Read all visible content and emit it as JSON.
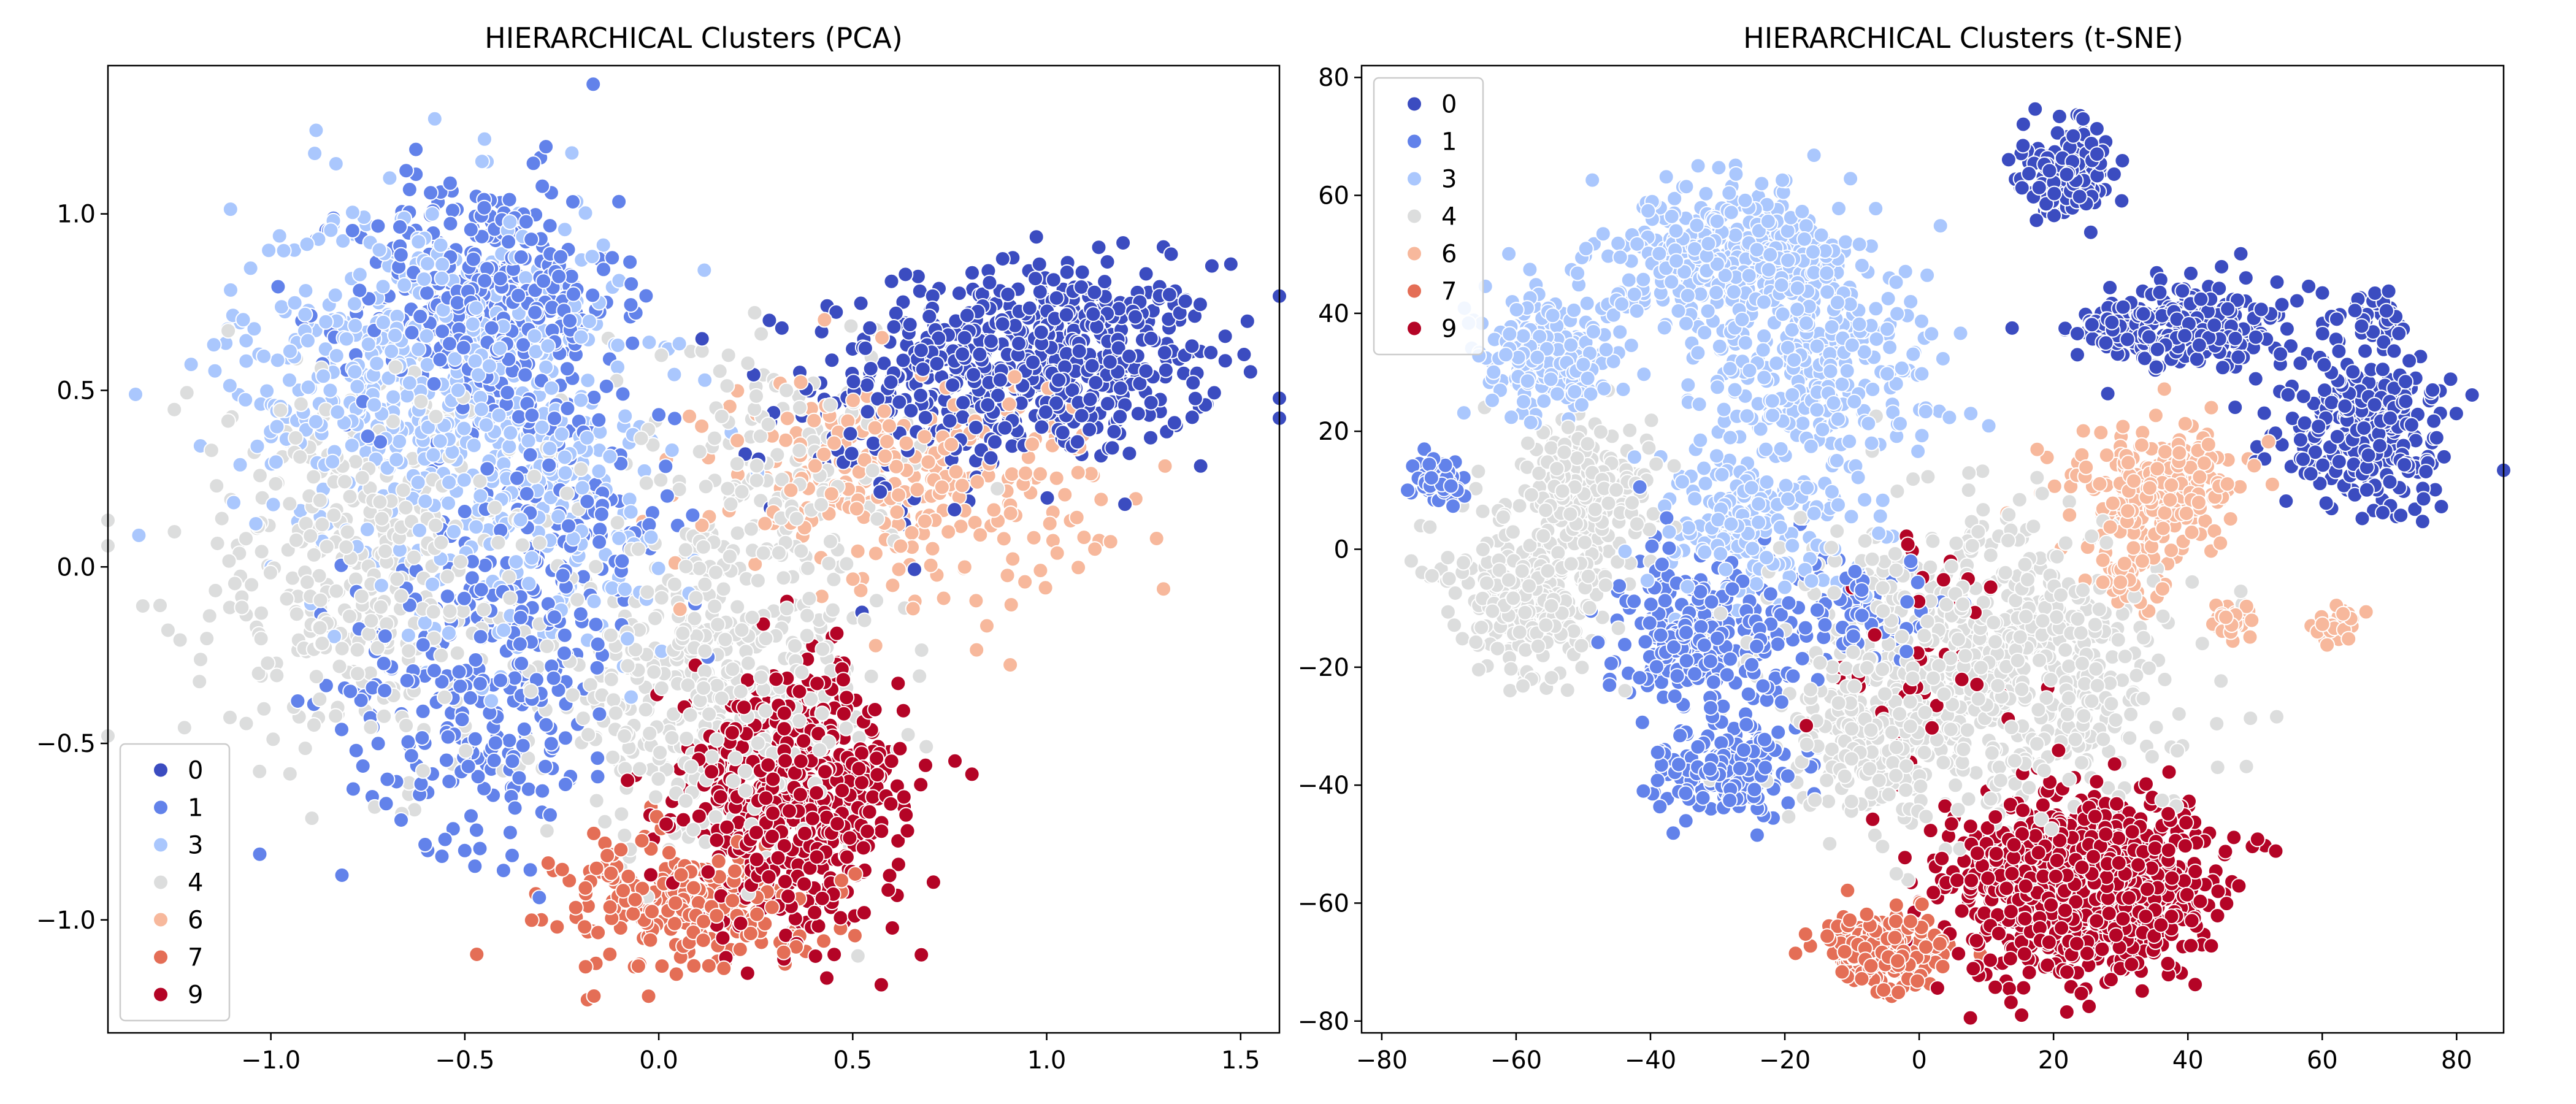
{
  "colors": {
    "0": "#3b4cc0",
    "1": "#6282ea",
    "3": "#aac7fd",
    "4": "#dcdddd",
    "6": "#f7b89c",
    "7": "#e46e56",
    "9": "#b40426"
  },
  "legend_labels": [
    "0",
    "1",
    "3",
    "4",
    "6",
    "7",
    "9"
  ],
  "chart_data": [
    {
      "type": "scatter",
      "title": "HIERARCHICAL Clusters (PCA)",
      "xlabel": "",
      "ylabel": "",
      "xlim": [
        -1.42,
        1.6
      ],
      "ylim": [
        -1.32,
        1.42
      ],
      "xticks": [
        -1.0,
        -0.5,
        0.0,
        0.5,
        1.0,
        1.5
      ],
      "xtick_labels": [
        "−1.0",
        "−0.5",
        "0.0",
        "0.5",
        "1.0",
        "1.5"
      ],
      "yticks": [
        -1.0,
        -0.5,
        0.0,
        0.5,
        1.0
      ],
      "ytick_labels": [
        "−1.0",
        "−0.5",
        "0.0",
        "0.5",
        "1.0"
      ],
      "grid": false,
      "legend_position": "lower-left",
      "series": [
        {
          "name": "0",
          "clusters": [
            {
              "cx": 1.0,
              "cy": 0.58,
              "sx": 0.22,
              "sy": 0.14,
              "n": 560
            },
            {
              "cx": 0.6,
              "cy": 0.45,
              "sx": 0.15,
              "sy": 0.15,
              "n": 100
            }
          ]
        },
        {
          "name": "1",
          "clusters": [
            {
              "cx": -0.45,
              "cy": 0.75,
              "sx": 0.17,
              "sy": 0.18,
              "n": 380
            },
            {
              "cx": -0.45,
              "cy": -0.35,
              "sx": 0.18,
              "sy": 0.22,
              "n": 260
            },
            {
              "cx": -0.25,
              "cy": 0.15,
              "sx": 0.15,
              "sy": 0.2,
              "n": 140
            }
          ]
        },
        {
          "name": "3",
          "clusters": [
            {
              "cx": -0.6,
              "cy": 0.55,
              "sx": 0.25,
              "sy": 0.25,
              "n": 560
            },
            {
              "cx": -0.3,
              "cy": 0.15,
              "sx": 0.2,
              "sy": 0.2,
              "n": 180
            }
          ]
        },
        {
          "name": "4",
          "clusters": [
            {
              "cx": -0.75,
              "cy": 0.0,
              "sx": 0.23,
              "sy": 0.28,
              "n": 420
            },
            {
              "cx": 0.15,
              "cy": -0.35,
              "sx": 0.22,
              "sy": 0.22,
              "n": 480
            },
            {
              "cx": 0.3,
              "cy": 0.3,
              "sx": 0.22,
              "sy": 0.15,
              "n": 160
            }
          ]
        },
        {
          "name": "6",
          "clusters": [
            {
              "cx": 0.65,
              "cy": 0.25,
              "sx": 0.25,
              "sy": 0.15,
              "n": 300
            }
          ]
        },
        {
          "name": "7",
          "clusters": [
            {
              "cx": 0.0,
              "cy": -0.95,
              "sx": 0.13,
              "sy": 0.1,
              "n": 160
            },
            {
              "cx": 0.2,
              "cy": -1.0,
              "sx": 0.15,
              "sy": 0.08,
              "n": 80
            }
          ]
        },
        {
          "name": "9",
          "clusters": [
            {
              "cx": 0.35,
              "cy": -0.65,
              "sx": 0.14,
              "sy": 0.18,
              "n": 620
            }
          ]
        }
      ]
    },
    {
      "type": "scatter",
      "title": "HIERARCHICAL Clusters (t-SNE)",
      "xlabel": "",
      "ylabel": "",
      "xlim": [
        -83,
        87
      ],
      "ylim": [
        -82,
        82
      ],
      "xticks": [
        -80,
        -60,
        -40,
        -20,
        0,
        20,
        40,
        60,
        80
      ],
      "xtick_labels": [
        "−80",
        "−60",
        "−40",
        "−20",
        "0",
        "20",
        "40",
        "60",
        "80"
      ],
      "yticks": [
        -80,
        -60,
        -40,
        -20,
        0,
        20,
        40,
        60,
        80
      ],
      "ytick_labels": [
        "−80",
        "−60",
        "−40",
        "−20",
        "0",
        "20",
        "40",
        "60",
        "80"
      ],
      "grid": false,
      "legend_position": "upper-left",
      "series": [
        {
          "name": "0",
          "clusters": [
            {
              "cx": 22,
              "cy": 64,
              "sx": 3.5,
              "sy": 3.5,
              "n": 150
            },
            {
              "cx": 40,
              "cy": 38,
              "sx": 8,
              "sy": 3.5,
              "n": 280
            },
            {
              "cx": 67,
              "cy": 20,
              "sx": 6.5,
              "sy": 6.5,
              "n": 280
            },
            {
              "cx": 68,
              "cy": 38,
              "sx": 2.5,
              "sy": 2.5,
              "n": 40
            }
          ]
        },
        {
          "name": "1",
          "clusters": [
            {
              "cx": -32,
              "cy": -14,
              "sx": 7,
              "sy": 7,
              "n": 260
            },
            {
              "cx": -28,
              "cy": -38,
              "sx": 5,
              "sy": 4,
              "n": 170
            },
            {
              "cx": -72,
              "cy": 12,
              "sx": 2,
              "sy": 2,
              "n": 60
            },
            {
              "cx": -10,
              "cy": -10,
              "sx": 6,
              "sy": 5,
              "n": 80
            }
          ]
        },
        {
          "name": "3",
          "clusters": [
            {
              "cx": -28,
              "cy": 50,
              "sx": 9,
              "sy": 6,
              "n": 340
            },
            {
              "cx": -55,
              "cy": 33,
              "sx": 5,
              "sy": 5,
              "n": 220
            },
            {
              "cx": -15,
              "cy": 32,
              "sx": 9,
              "sy": 10,
              "n": 320
            },
            {
              "cx": -25,
              "cy": 5,
              "sx": 7,
              "sy": 7,
              "n": 200
            }
          ]
        },
        {
          "name": "4",
          "clusters": [
            {
              "cx": -58,
              "cy": -8,
              "sx": 6,
              "sy": 7,
              "n": 260
            },
            {
              "cx": -50,
              "cy": 10,
              "sx": 6,
              "sy": 6,
              "n": 200
            },
            {
              "cx": 10,
              "cy": -20,
              "sx": 14,
              "sy": 13,
              "n": 780
            },
            {
              "cx": -8,
              "cy": -35,
              "sx": 6,
              "sy": 6,
              "n": 120
            }
          ]
        },
        {
          "name": "6",
          "clusters": [
            {
              "cx": 35,
              "cy": 10,
              "sx": 6,
              "sy": 5,
              "n": 260
            },
            {
              "cx": 46,
              "cy": -12,
              "sx": 1.8,
              "sy": 1.8,
              "n": 30
            },
            {
              "cx": 62,
              "cy": -13,
              "sx": 1.8,
              "sy": 1.8,
              "n": 30
            },
            {
              "cx": 31,
              "cy": -5,
              "sx": 2.5,
              "sy": 2.5,
              "n": 40
            }
          ]
        },
        {
          "name": "7",
          "clusters": [
            {
              "cx": -5,
              "cy": -68,
              "sx": 4.5,
              "sy": 3,
              "n": 220
            }
          ]
        },
        {
          "name": "9",
          "clusters": [
            {
              "cx": 24,
              "cy": -57,
              "sx": 9,
              "sy": 7.5,
              "n": 1050
            },
            {
              "cx": 2,
              "cy": -20,
              "sx": 8,
              "sy": 12,
              "n": 50
            }
          ]
        }
      ]
    }
  ]
}
